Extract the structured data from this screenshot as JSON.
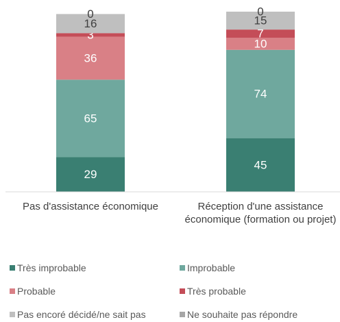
{
  "chart_data": {
    "type": "stacked_bar",
    "categories": [
      "Pas d'assistance économique",
      "Réception d'une assistance économique (formation ou projet)"
    ],
    "series": [
      {
        "name": "Très improbable",
        "color": "#3a7f72",
        "values": [
          29,
          45
        ]
      },
      {
        "name": "Improbable",
        "color": "#6fa89e",
        "values": [
          65,
          74
        ]
      },
      {
        "name": "Probable",
        "color": "#d98086",
        "values": [
          36,
          10
        ]
      },
      {
        "name": "Très probable",
        "color": "#c44d58",
        "values": [
          3,
          7
        ]
      },
      {
        "name": "Pas encoré décidé/ne sait pas",
        "color": "#bfbfbf",
        "values": [
          16,
          15
        ]
      },
      {
        "name": "Ne souhaite pas répondre",
        "color": "#a6a6a6",
        "values": [
          0,
          0
        ]
      }
    ],
    "ylim": [
      0,
      151
    ]
  }
}
